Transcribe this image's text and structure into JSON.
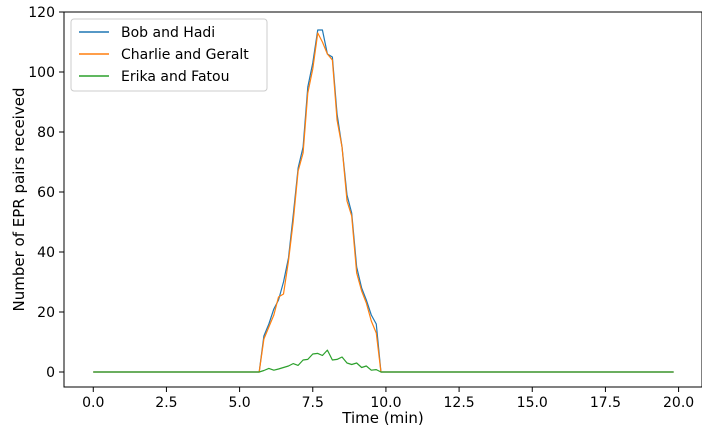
{
  "chart_data": {
    "type": "line",
    "title": "",
    "xlabel": "Time (min)",
    "ylabel": "Number of EPR pairs received",
    "xlim": [
      -1.0,
      20.8
    ],
    "ylim": [
      -5,
      120
    ],
    "xticks": [
      0.0,
      2.5,
      5.0,
      7.5,
      10.0,
      12.5,
      15.0,
      17.5,
      20.0
    ],
    "xtick_labels": [
      "0.0",
      "2.5",
      "5.0",
      "7.5",
      "10.0",
      "12.5",
      "15.0",
      "17.5",
      "20.0"
    ],
    "yticks": [
      0,
      20,
      40,
      60,
      80,
      100,
      120
    ],
    "ytick_labels": [
      "0",
      "20",
      "40",
      "60",
      "80",
      "100",
      "120"
    ],
    "grid": false,
    "legend_position": "top-left",
    "series": [
      {
        "name": "Bob and Hadi",
        "color": "#1f77b4",
        "x": [
          0.0,
          5.67,
          5.83,
          6.0,
          6.17,
          6.33,
          6.5,
          6.67,
          6.83,
          7.0,
          7.17,
          7.33,
          7.5,
          7.67,
          7.83,
          8.0,
          8.17,
          8.33,
          8.5,
          8.67,
          8.83,
          9.0,
          9.17,
          9.33,
          9.5,
          9.67,
          9.83,
          19.83
        ],
        "y": [
          0,
          0,
          12,
          16,
          21,
          24,
          30,
          38,
          52,
          68,
          75,
          95,
          103,
          114,
          114,
          106,
          105,
          86,
          75,
          59,
          53,
          35,
          28,
          24,
          19,
          16,
          0,
          0
        ]
      },
      {
        "name": "Charlie and Geralt",
        "color": "#ff7f0e",
        "x": [
          0.0,
          5.67,
          5.83,
          6.0,
          6.17,
          6.33,
          6.5,
          6.67,
          6.83,
          7.0,
          7.17,
          7.33,
          7.5,
          7.67,
          7.83,
          8.0,
          8.17,
          8.33,
          8.5,
          8.67,
          8.83,
          9.0,
          9.17,
          9.33,
          9.5,
          9.67,
          9.83,
          19.83
        ],
        "y": [
          0,
          0,
          11,
          15,
          19,
          25,
          26,
          37,
          50,
          67,
          73,
          93,
          101,
          113,
          110,
          106,
          104,
          84,
          75,
          57,
          52,
          33,
          27,
          23,
          17,
          13,
          0,
          0
        ]
      },
      {
        "name": "Erika and Fatou",
        "color": "#2ca02c",
        "x": [
          0.0,
          5.67,
          5.83,
          6.0,
          6.17,
          6.33,
          6.5,
          6.67,
          6.83,
          7.0,
          7.17,
          7.33,
          7.5,
          7.67,
          7.83,
          8.0,
          8.17,
          8.33,
          8.5,
          8.67,
          8.83,
          9.0,
          9.17,
          9.33,
          9.5,
          9.67,
          9.83,
          19.83
        ],
        "y": [
          0,
          0,
          0.5,
          1.2,
          0.6,
          1.0,
          1.5,
          2.0,
          2.8,
          2.2,
          4.0,
          4.2,
          6.0,
          6.2,
          5.5,
          7.3,
          4.0,
          4.2,
          5.0,
          3.0,
          2.5,
          3.0,
          1.5,
          2.0,
          0.6,
          0.8,
          0,
          0
        ]
      }
    ]
  }
}
